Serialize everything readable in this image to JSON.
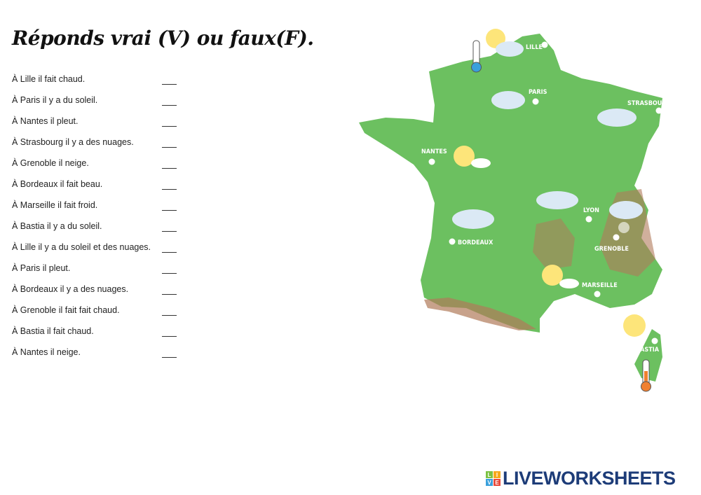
{
  "title": "Réponds vrai (V) ou faux(F).",
  "questions": [
    "À Lille il fait chaud.",
    "À Paris il y a du soleil.",
    "À Nantes il pleut.",
    "À Strasbourg il y a des nuages.",
    "À Grenoble il neige.",
    "À Bordeaux il fait beau.",
    "À Marseille il fait froid.",
    "À Bastia il y a du soleil.",
    "À Lille il y a du soleil et des nuages.",
    "À Paris il pleut.",
    "À Bordeaux il y a des nuages.",
    "À Grenoble il fait fait chaud.",
    "À Bastia il fait chaud.",
    "À Nantes il neige."
  ],
  "map": {
    "cities": [
      "LILLE",
      "PARIS",
      "STRASBOURG",
      "NANTES",
      "LYON",
      "BORDEAUX",
      "GRENOBLE",
      "MARSEILLE",
      "BASTIA"
    ],
    "colors": {
      "land": "#6cc060",
      "mountain": "#b07a5a",
      "sun": "#fde57a",
      "cloud": "#dbe9f5"
    }
  },
  "logo": {
    "blocks": [
      "L",
      "I",
      "V",
      "E"
    ],
    "text": "LIVEWORKSHEETS",
    "colors": [
      "#7cc242",
      "#f6a81c",
      "#3aa0dc",
      "#e84a3c"
    ]
  }
}
